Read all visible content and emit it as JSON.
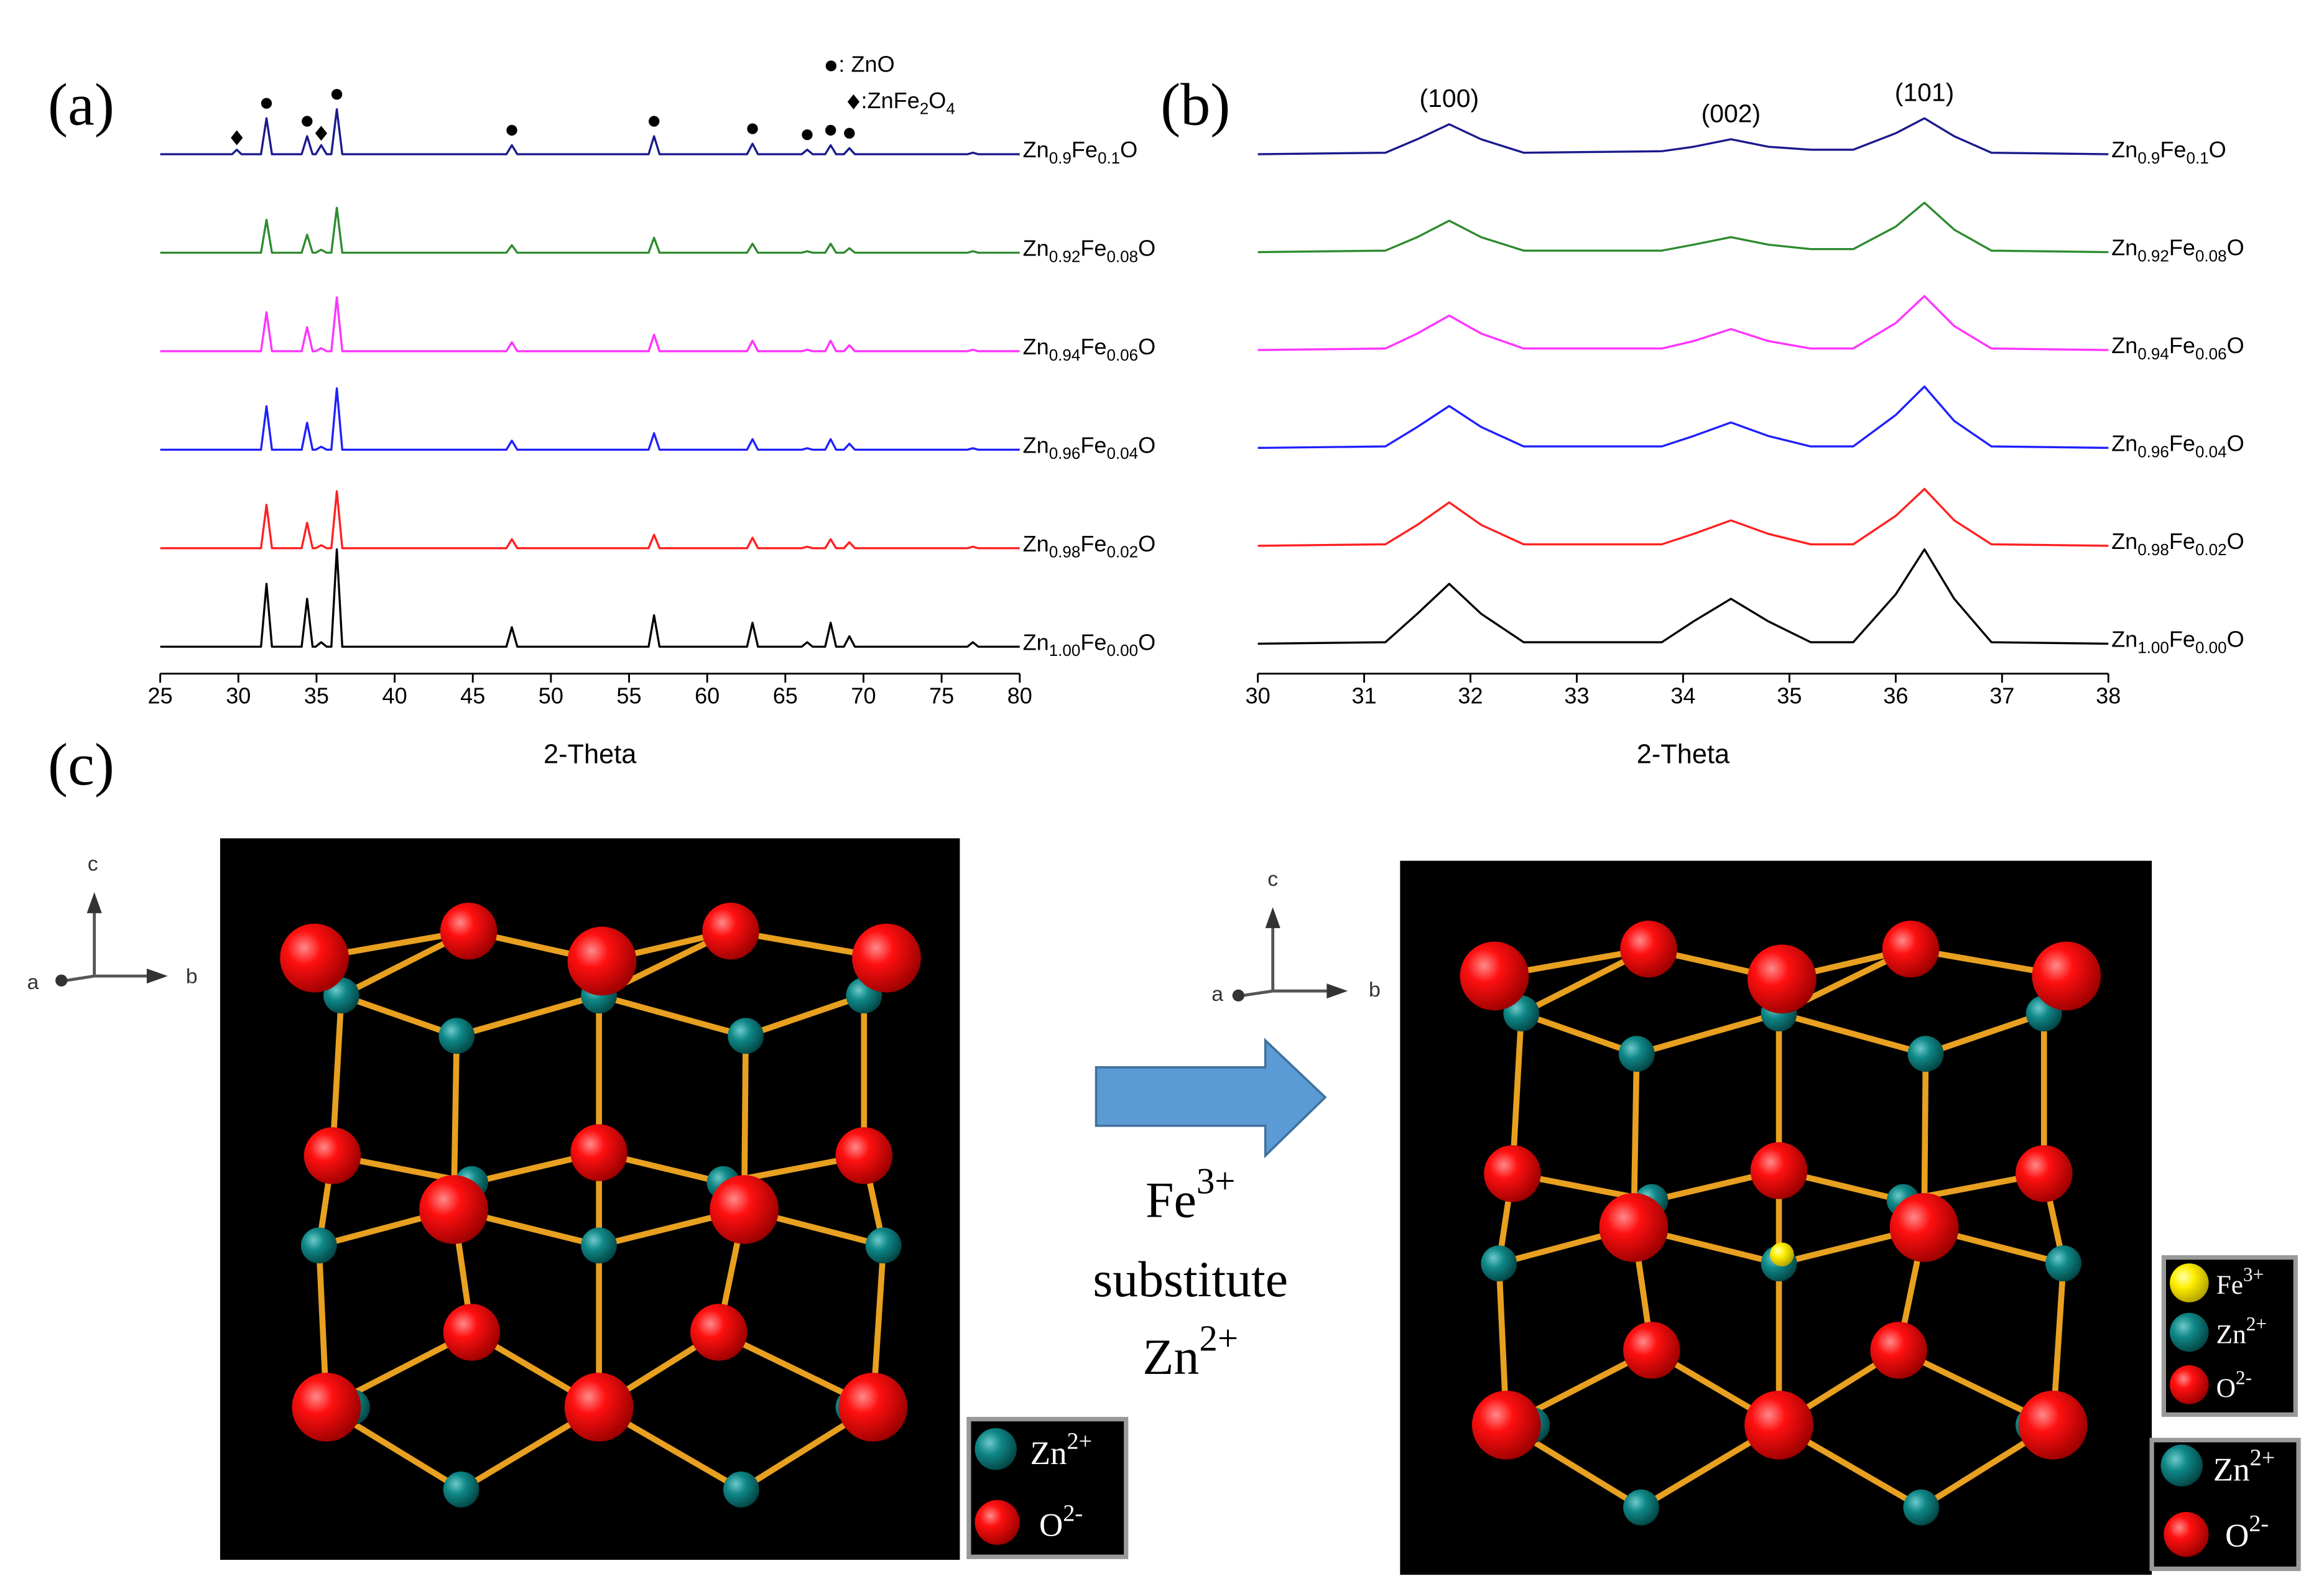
{
  "chart_data": [
    {
      "type": "line",
      "panel_label": "(a)",
      "xlabel": "2-Theta",
      "xlim": [
        25,
        80
      ],
      "xticks": [
        25,
        30,
        35,
        40,
        45,
        50,
        55,
        60,
        65,
        70,
        75,
        80
      ],
      "x": [
        25,
        29.6,
        29.9,
        30.2,
        31.45,
        31.8,
        32.15,
        34.05,
        34.4,
        34.75,
        34.95,
        35.3,
        35.65,
        35.95,
        36.3,
        36.65,
        47.15,
        47.5,
        47.85,
        56.25,
        56.6,
        56.95,
        62.55,
        62.9,
        63.25,
        66.05,
        66.4,
        66.75,
        67.55,
        67.9,
        68.25,
        68.75,
        69.1,
        69.45,
        76.65,
        77,
        77.35,
        80
      ],
      "series": [
        {
          "name": "Zn0.9Fe0.1O",
          "color": "#1a1a8c",
          "values": [
            0,
            0,
            3,
            0,
            0,
            24,
            0,
            0,
            12,
            0,
            0,
            6,
            0,
            0,
            30,
            0,
            0,
            6,
            0,
            0,
            12,
            0,
            0,
            7,
            0,
            0,
            3,
            0,
            0,
            6,
            0,
            0,
            4,
            0,
            0,
            1,
            0,
            0
          ]
        },
        {
          "name": "Zn0.92Fe0.08O",
          "color": "#2e8b2e",
          "values": [
            0,
            0,
            0,
            0,
            0,
            22,
            0,
            0,
            12,
            0,
            0,
            2,
            0,
            0,
            30,
            0,
            0,
            5,
            0,
            0,
            10,
            0,
            0,
            6,
            0,
            0,
            1,
            0,
            0,
            6,
            0,
            0,
            3,
            0,
            0,
            1,
            0,
            0
          ]
        },
        {
          "name": "Zn0.94Fe0.06O",
          "color": "#ff33ff",
          "values": [
            0,
            0,
            0,
            0,
            0,
            26,
            0,
            0,
            16,
            0,
            0,
            2,
            0,
            0,
            36,
            0,
            0,
            6,
            0,
            0,
            11,
            0,
            0,
            7,
            0,
            0,
            1,
            0,
            0,
            7,
            0,
            0,
            4,
            0,
            0,
            1,
            0,
            0
          ]
        },
        {
          "name": "Zn0.96Fe0.04O",
          "color": "#1f1fff",
          "values": [
            0,
            0,
            0,
            0,
            0,
            29,
            0,
            0,
            18,
            0,
            0,
            2,
            0,
            0,
            41,
            0,
            0,
            6,
            0,
            0,
            11,
            0,
            0,
            7,
            0,
            0,
            1,
            0,
            0,
            7,
            0,
            0,
            4,
            0,
            0,
            1,
            0,
            0
          ]
        },
        {
          "name": "Zn0.98Fe0.02O",
          "color": "#ff2020",
          "values": [
            0,
            0,
            0,
            0,
            0,
            29,
            0,
            0,
            17,
            0,
            0,
            2,
            0,
            0,
            38,
            0,
            0,
            6,
            0,
            0,
            9,
            0,
            0,
            7,
            0,
            0,
            1,
            0,
            0,
            6,
            0,
            0,
            4,
            0,
            0,
            1,
            0,
            0
          ]
        },
        {
          "name": "Zn1.00Fe0.00O",
          "color": "#000000",
          "values": [
            0,
            0,
            0,
            0,
            0,
            42,
            0,
            0,
            32,
            0,
            0,
            3,
            0,
            0,
            65,
            0,
            0,
            13,
            0,
            0,
            21,
            0,
            0,
            16,
            0,
            0,
            3,
            0,
            0,
            16,
            0,
            0,
            7,
            0,
            0,
            3,
            0,
            0
          ]
        }
      ],
      "zno_legend": ": ZnO",
      "znfe2o4_legend": ":ZnFe2O4",
      "zno_peaks": [
        31.8,
        34.4,
        36.3,
        47.5,
        56.6,
        62.9,
        66.4,
        67.9,
        69.1
      ],
      "znfe2o4_peaks": [
        29.9,
        35.3
      ]
    },
    {
      "type": "line",
      "panel_label": "(b)",
      "xlabel": "2-Theta",
      "xlim": [
        30,
        38
      ],
      "xticks": [
        30,
        31,
        32,
        33,
        34,
        35,
        36,
        37,
        38
      ],
      "x": [
        30,
        31.2,
        31.5,
        31.8,
        32.1,
        32.5,
        33.8,
        34.1,
        34.45,
        34.8,
        35.2,
        35.6,
        36.0,
        36.27,
        36.55,
        36.9,
        38
      ],
      "series": [
        {
          "name": "Zn0.9Fe0.1O",
          "color": "#1a1a8c",
          "values": [
            0,
            1,
            10,
            20,
            10,
            1,
            2,
            5,
            10,
            5,
            3,
            3,
            14,
            24,
            12,
            1,
            0
          ]
        },
        {
          "name": "Zn0.92Fe0.08O",
          "color": "#2e8b2e",
          "values": [
            0,
            1,
            10,
            21,
            10,
            1,
            1,
            5,
            10,
            5,
            2,
            2,
            17,
            33,
            15,
            1,
            0
          ]
        },
        {
          "name": "Zn0.94Fe0.06O",
          "color": "#ff33ff",
          "values": [
            0,
            1,
            11,
            23,
            11,
            1,
            1,
            6,
            14,
            6,
            1,
            1,
            18,
            36,
            16,
            1,
            0
          ]
        },
        {
          "name": "Zn0.96Fe0.04O",
          "color": "#1f1fff",
          "values": [
            0,
            1,
            14,
            28,
            14,
            1,
            1,
            8,
            17,
            8,
            1,
            1,
            22,
            41,
            18,
            1,
            0
          ]
        },
        {
          "name": "Zn0.98Fe0.02O",
          "color": "#ff2020",
          "values": [
            0,
            1,
            14,
            29,
            14,
            1,
            1,
            8,
            17,
            8,
            1,
            1,
            20,
            38,
            17,
            1,
            0
          ]
        },
        {
          "name": "Zn1.00Fe0.00O",
          "color": "#000000",
          "values": [
            0,
            1,
            20,
            40,
            20,
            1,
            1,
            15,
            30,
            15,
            1,
            1,
            33,
            63,
            30,
            1,
            0
          ]
        }
      ],
      "annotations": [
        {
          "text": "(100)",
          "x": 31.8
        },
        {
          "text": "(002)",
          "x": 34.45
        },
        {
          "text": "(101)",
          "x": 36.27
        }
      ]
    }
  ],
  "diagram": {
    "panel_label": "(c)",
    "axis_labels": [
      "a",
      "b",
      "c"
    ],
    "arrow_text": [
      "Fe3+",
      "substitute",
      "Zn2+"
    ],
    "legend_left": [
      "Zn2+",
      "O2-"
    ],
    "legend_right": [
      "Fe3+",
      "Zn2+",
      "O2-"
    ],
    "legend_right_lower": [
      "Zn2+",
      "O2-"
    ]
  }
}
